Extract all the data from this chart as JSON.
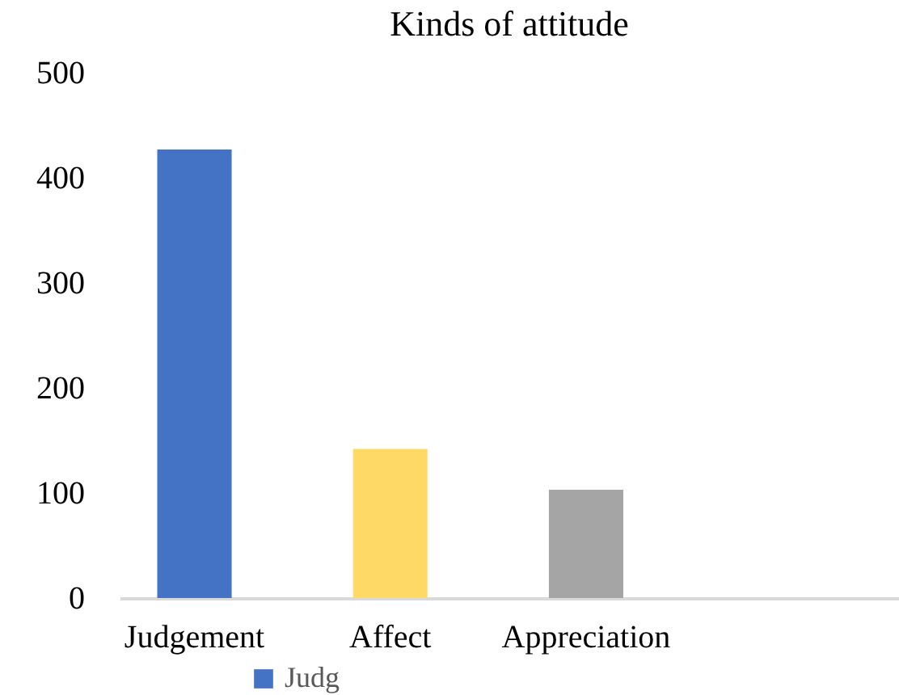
{
  "chart_data": {
    "type": "bar",
    "title": "Kinds of attitude",
    "categories": [
      "Judgement",
      "Affect",
      "Appreciation"
    ],
    "series": [
      {
        "name": "Judg",
        "color": "#4472c4",
        "colors": [
          "#4472c4",
          "#ffd966",
          "#a5a5a5"
        ],
        "values": [
          427,
          142,
          103
        ]
      }
    ],
    "ylim": [
      0,
      500
    ],
    "yticks": [
      0,
      100,
      200,
      300,
      400,
      500
    ],
    "grid": false,
    "legend": "bottom"
  }
}
